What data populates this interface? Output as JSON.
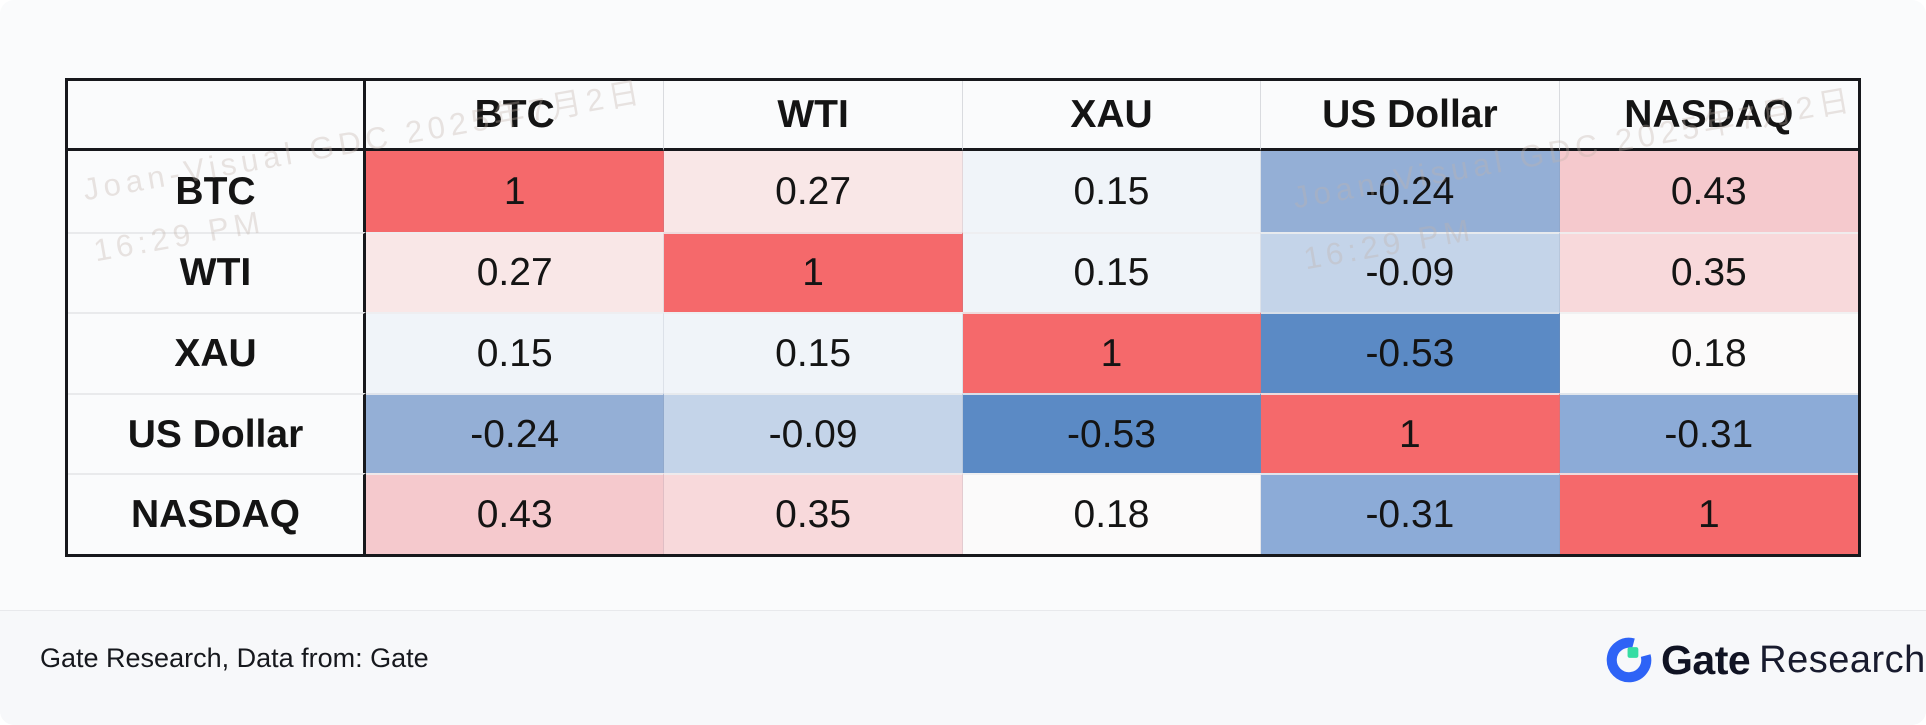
{
  "page": {
    "background": "#FAFBFC",
    "footer_background": "#F7F8FA"
  },
  "watermark": {
    "line1": "Joan-Visual GDC 2025年7月2日",
    "line2": "16:29 PM"
  },
  "table": {
    "columns": [
      "",
      "BTC",
      "WTI",
      "XAU",
      "US Dollar",
      "NASDAQ"
    ],
    "rows": [
      {
        "label": "BTC",
        "values": [
          "1",
          "0.27",
          "0.15",
          "-0.24",
          "0.43"
        ],
        "colors": [
          "#F5696B",
          "#F9E7E7",
          "#F0F4F9",
          "#94AFD6",
          "#F5C9CD"
        ]
      },
      {
        "label": "WTI",
        "values": [
          "0.27",
          "1",
          "0.15",
          "-0.09",
          "0.35"
        ],
        "colors": [
          "#F9E7E7",
          "#F5696B",
          "#F0F4F9",
          "#C4D4E9",
          "#F8D9DB"
        ]
      },
      {
        "label": "XAU",
        "values": [
          "0.15",
          "0.15",
          "1",
          "-0.53",
          "0.18"
        ],
        "colors": [
          "#F0F4F9",
          "#F0F4F9",
          "#F5696B",
          "#5B8AC5",
          "#FBFAFA"
        ]
      },
      {
        "label": "US Dollar",
        "values": [
          "-0.24",
          "-0.09",
          "-0.53",
          "1",
          "-0.31"
        ],
        "colors": [
          "#94AFD6",
          "#C4D4E9",
          "#5B8AC5",
          "#F5696B",
          "#8CABD7"
        ]
      },
      {
        "label": "NASDAQ",
        "values": [
          "0.43",
          "0.35",
          "0.18",
          "-0.31",
          "1"
        ],
        "colors": [
          "#F5C9CD",
          "#F8D9DB",
          "#FBFAFA",
          "#8CABD7",
          "#F5696B"
        ]
      }
    ]
  },
  "chart_data": {
    "type": "heatmap",
    "title": "",
    "categories": [
      "BTC",
      "WTI",
      "XAU",
      "US Dollar",
      "NASDAQ"
    ],
    "matrix": [
      [
        1,
        0.27,
        0.15,
        -0.24,
        0.43
      ],
      [
        0.27,
        1,
        0.15,
        -0.09,
        0.35
      ],
      [
        0.15,
        0.15,
        1,
        -0.53,
        0.18
      ],
      [
        -0.24,
        -0.09,
        -0.53,
        1,
        -0.31
      ],
      [
        0.43,
        0.35,
        0.18,
        -0.31,
        1
      ]
    ],
    "value_range": [
      -1,
      1
    ],
    "positive_color": "#F5696B",
    "negative_color": "#5B8AC5",
    "legend": "none",
    "grid": true
  },
  "footer": {
    "source_text": "Gate Research, Data from: Gate",
    "brand_bold": "Gate",
    "brand_light": "Research",
    "logo_blue": "#2E63F6",
    "logo_green": "#36DDA3"
  }
}
